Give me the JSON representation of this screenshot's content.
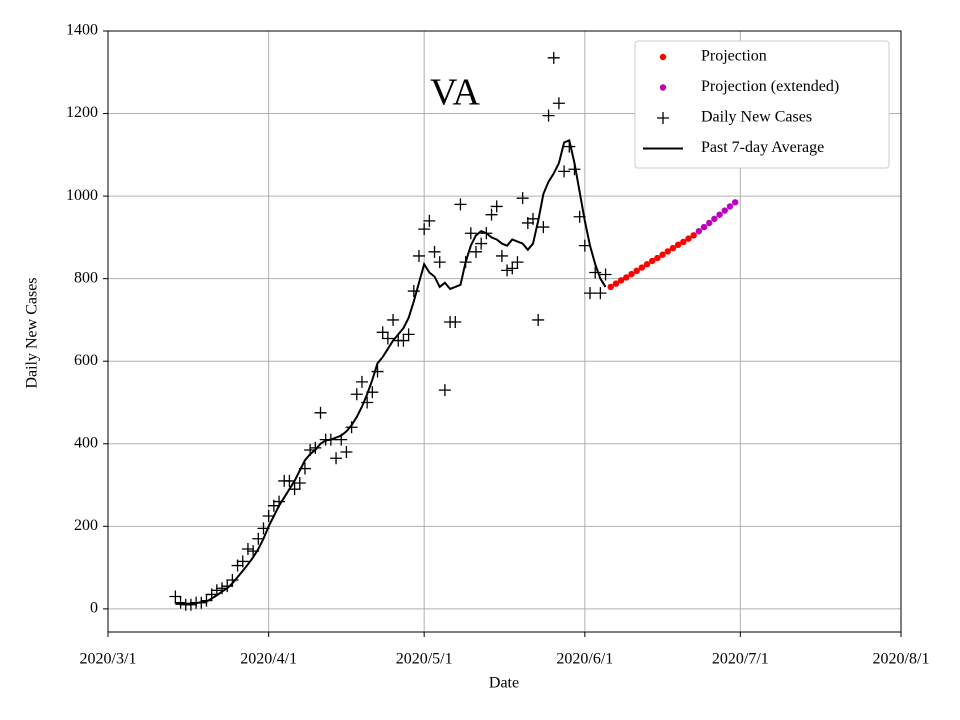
{
  "chart_data": {
    "type": "line",
    "annotation": "VA",
    "xlabel": "Date",
    "ylabel": "Daily New Cases",
    "xlim": [
      "2020/3/1",
      "2020/8/1"
    ],
    "xticks": [
      "2020/3/1",
      "2020/4/1",
      "2020/5/1",
      "2020/6/1",
      "2020/7/1",
      "2020/8/1"
    ],
    "ylim": [
      -56,
      1400
    ],
    "yticks": [
      0,
      200,
      400,
      600,
      800,
      1000,
      1200,
      1400
    ],
    "grid": true,
    "legend": "upper right",
    "series": [
      {
        "name": "Projection",
        "color": "#ff0000",
        "marker": "dot",
        "x": [
          "2020/6/6",
          "2020/6/7",
          "2020/6/8",
          "2020/6/9",
          "2020/6/10",
          "2020/6/11",
          "2020/6/12",
          "2020/6/13",
          "2020/6/14",
          "2020/6/15",
          "2020/6/16",
          "2020/6/17",
          "2020/6/18",
          "2020/6/19",
          "2020/6/20",
          "2020/6/21",
          "2020/6/22"
        ],
        "values": [
          780,
          788,
          796,
          803,
          811,
          819,
          827,
          835,
          843,
          850,
          858,
          866,
          874,
          882,
          889,
          897,
          905
        ]
      },
      {
        "name": "Projection (extended)",
        "color": "#bf00bf",
        "marker": "dot",
        "x": [
          "2020/6/23",
          "2020/6/24",
          "2020/6/25",
          "2020/6/26",
          "2020/6/27",
          "2020/6/28",
          "2020/6/29",
          "2020/6/30"
        ],
        "values": [
          915,
          925,
          935,
          945,
          955,
          965,
          975,
          985
        ]
      },
      {
        "name": "Daily New Cases",
        "color": "#000000",
        "marker": "plus",
        "x": [
          "2020/3/14",
          "2020/3/15",
          "2020/3/16",
          "2020/3/17",
          "2020/3/18",
          "2020/3/19",
          "2020/3/20",
          "2020/3/21",
          "2020/3/22",
          "2020/3/23",
          "2020/3/24",
          "2020/3/25",
          "2020/3/26",
          "2020/3/27",
          "2020/3/28",
          "2020/3/29",
          "2020/3/30",
          "2020/3/31",
          "2020/4/1",
          "2020/4/2",
          "2020/4/3",
          "2020/4/4",
          "2020/4/5",
          "2020/4/6",
          "2020/4/7",
          "2020/4/8",
          "2020/4/9",
          "2020/4/10",
          "2020/4/11",
          "2020/4/12",
          "2020/4/13",
          "2020/4/14",
          "2020/4/15",
          "2020/4/16",
          "2020/4/17",
          "2020/4/18",
          "2020/4/19",
          "2020/4/20",
          "2020/4/21",
          "2020/4/22",
          "2020/4/23",
          "2020/4/24",
          "2020/4/25",
          "2020/4/26",
          "2020/4/27",
          "2020/4/28",
          "2020/4/29",
          "2020/4/30",
          "2020/5/1",
          "2020/5/2",
          "2020/5/3",
          "2020/5/4",
          "2020/5/5",
          "2020/5/6",
          "2020/5/7",
          "2020/5/8",
          "2020/5/9",
          "2020/5/10",
          "2020/5/11",
          "2020/5/12",
          "2020/5/13",
          "2020/5/14",
          "2020/5/15",
          "2020/5/16",
          "2020/5/17",
          "2020/5/18",
          "2020/5/19",
          "2020/5/20",
          "2020/5/21",
          "2020/5/22",
          "2020/5/23",
          "2020/5/24",
          "2020/5/25",
          "2020/5/26",
          "2020/5/27",
          "2020/5/28",
          "2020/5/29",
          "2020/5/30",
          "2020/5/31",
          "2020/6/1",
          "2020/6/2",
          "2020/6/3",
          "2020/6/4",
          "2020/6/5"
        ],
        "values": [
          30,
          15,
          10,
          10,
          15,
          15,
          20,
          35,
          45,
          50,
          55,
          70,
          105,
          115,
          145,
          140,
          170,
          195,
          225,
          250,
          260,
          310,
          310,
          290,
          305,
          340,
          385,
          390,
          475,
          410,
          410,
          365,
          410,
          380,
          440,
          520,
          550,
          500,
          525,
          575,
          670,
          655,
          700,
          650,
          650,
          665,
          770,
          855,
          920,
          940,
          865,
          840,
          530,
          695,
          695,
          980,
          840,
          910,
          865,
          885,
          910,
          955,
          975,
          855,
          820,
          825,
          840,
          995,
          935,
          945,
          700,
          925,
          1195,
          1335,
          1225,
          1060,
          1120,
          1065,
          950,
          880,
          765,
          815,
          765,
          810
        ]
      },
      {
        "name": "Past 7-day Average",
        "color": "#000000",
        "marker": "line",
        "x": [
          "2020/3/14",
          "2020/3/15",
          "2020/3/16",
          "2020/3/17",
          "2020/3/18",
          "2020/3/19",
          "2020/3/20",
          "2020/3/21",
          "2020/3/22",
          "2020/3/23",
          "2020/3/24",
          "2020/3/25",
          "2020/3/26",
          "2020/3/27",
          "2020/3/28",
          "2020/3/29",
          "2020/3/30",
          "2020/3/31",
          "2020/4/1",
          "2020/4/2",
          "2020/4/3",
          "2020/4/4",
          "2020/4/5",
          "2020/4/6",
          "2020/4/7",
          "2020/4/8",
          "2020/4/9",
          "2020/4/10",
          "2020/4/11",
          "2020/4/12",
          "2020/4/13",
          "2020/4/14",
          "2020/4/15",
          "2020/4/16",
          "2020/4/17",
          "2020/4/18",
          "2020/4/19",
          "2020/4/20",
          "2020/4/21",
          "2020/4/22",
          "2020/4/23",
          "2020/4/24",
          "2020/4/25",
          "2020/4/26",
          "2020/4/27",
          "2020/4/28",
          "2020/4/29",
          "2020/4/30",
          "2020/5/1",
          "2020/5/2",
          "2020/5/3",
          "2020/5/4",
          "2020/5/5",
          "2020/5/6",
          "2020/5/7",
          "2020/5/8",
          "2020/5/9",
          "2020/5/10",
          "2020/5/11",
          "2020/5/12",
          "2020/5/13",
          "2020/5/14",
          "2020/5/15",
          "2020/5/16",
          "2020/5/17",
          "2020/5/18",
          "2020/5/19",
          "2020/5/20",
          "2020/5/21",
          "2020/5/22",
          "2020/5/23",
          "2020/5/24",
          "2020/5/25",
          "2020/5/26",
          "2020/5/27",
          "2020/5/28",
          "2020/5/29",
          "2020/5/30",
          "2020/5/31",
          "2020/6/1",
          "2020/6/2",
          "2020/6/3",
          "2020/6/4",
          "2020/6/5"
        ],
        "values": [
          12,
          12,
          12,
          13,
          14,
          16,
          18,
          25,
          33,
          42,
          50,
          62,
          77,
          92,
          108,
          125,
          145,
          170,
          200,
          225,
          250,
          270,
          290,
          310,
          335,
          360,
          375,
          385,
          400,
          408,
          410,
          415,
          420,
          430,
          445,
          465,
          490,
          520,
          555,
          595,
          610,
          630,
          650,
          665,
          680,
          705,
          745,
          790,
          835,
          815,
          805,
          780,
          790,
          775,
          780,
          785,
          840,
          880,
          905,
          915,
          910,
          900,
          895,
          885,
          880,
          895,
          890,
          885,
          870,
          885,
          940,
          1005,
          1035,
          1055,
          1080,
          1130,
          1135,
          1080,
          1010,
          940,
          880,
          835,
          800,
          780
        ]
      }
    ]
  }
}
